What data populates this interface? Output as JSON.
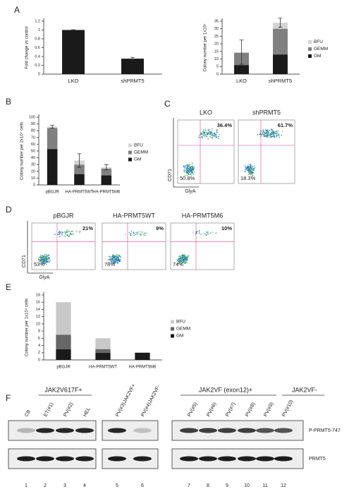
{
  "panels": [
    "A",
    "B",
    "C",
    "D",
    "E",
    "F"
  ],
  "chart_data": [
    {
      "type": "bar",
      "y_label": "Fold change vs control",
      "categories": [
        "LKO",
        "shPRMT5"
      ],
      "values": [
        1,
        0.35
      ],
      "errors": [
        0.005,
        0.03
      ],
      "color": "#1a1a1a",
      "ylim": [
        0,
        1.2
      ],
      "yticks": [
        0,
        0.2,
        0.4,
        0.6,
        0.8,
        1,
        1.2
      ]
    },
    {
      "type": "bar",
      "stacked": true,
      "legend": "right",
      "y_label": "Colony number per 1x10⁴",
      "categories": [
        "LKO",
        "shPRMT5"
      ],
      "series": [
        {
          "name": "GM",
          "color": "#1a1a1a",
          "values": [
            6,
            13
          ]
        },
        {
          "name": "GEMM",
          "color": "#808080",
          "values": [
            8,
            17
          ]
        },
        {
          "name": "BFU",
          "color": "#d4d4d4",
          "values": [
            0.5,
            4
          ],
          "errors": [
            8,
            3
          ]
        }
      ],
      "ylim": [
        0,
        35
      ],
      "yticks": [
        0,
        5,
        10,
        15,
        20,
        25,
        30,
        35
      ]
    },
    {
      "type": "bar",
      "stacked": true,
      "legend": "right",
      "y_label": "Colony number per 2x10⁴ cells",
      "categories": [
        "pBGJR",
        "HA-PRMT5WT",
        "HA-PRMT5M6"
      ],
      "series": [
        {
          "name": "GM",
          "color": "#1a1a1a",
          "values": [
            53,
            16,
            14
          ]
        },
        {
          "name": "GEMM",
          "color": "#808080",
          "values": [
            31,
            14,
            10
          ]
        },
        {
          "name": "BFU",
          "color": "#d4d4d4",
          "values": [
            2,
            6,
            2
          ],
          "errors": [
            2,
            10,
            4
          ]
        }
      ],
      "ylim": [
        0,
        100
      ],
      "yticks": [
        0,
        10,
        20,
        30,
        40,
        50,
        60,
        70,
        80,
        90,
        100
      ]
    },
    {
      "type": "bar",
      "stacked": true,
      "legend": "right",
      "y_label": "Colony number per 1x10⁴ cells",
      "categories": [
        "pBGJR",
        "HA-PRMT5WT",
        "HA-PRMT5M6"
      ],
      "series": [
        {
          "name": "GM",
          "color": "#1a1a1a",
          "values": [
            3,
            2,
            2
          ]
        },
        {
          "name": "GEMM",
          "color": "#666666",
          "values": [
            4,
            1,
            0
          ]
        },
        {
          "name": "BFU",
          "color": "#c8c8c8",
          "values": [
            9,
            3,
            0
          ]
        }
      ],
      "ylim": [
        0,
        18
      ],
      "yticks": [
        0,
        2,
        4,
        6,
        8,
        10,
        12,
        14,
        16,
        18
      ]
    }
  ],
  "flow": [
    {
      "x_label": "GlyA",
      "y_label": "CD71",
      "plots": [
        {
          "title": "LKO",
          "upper_right": "36.4%",
          "lower_left": "50.8%"
        },
        {
          "title": "shPRMT5",
          "upper_right": "61.7%",
          "lower_left": "18.3%"
        }
      ]
    },
    {
      "x_label": "GlyA",
      "y_label": "CD71",
      "plots": [
        {
          "title": "pBGJR",
          "upper_right": "21%",
          "lower_left": "53%"
        },
        {
          "title": "HA-PRMT5WT",
          "upper_right": "9%",
          "lower_left": "78%"
        },
        {
          "title": "HA-PRMT5M6",
          "upper_right": "10%",
          "lower_left": "74%"
        }
      ]
    }
  ],
  "blot": {
    "group_labels": [
      "JAK2V617F+",
      "JAK2VF (exon12)+",
      "JAK2VF-"
    ],
    "lanes": [
      "CB",
      "ET(#1)",
      "PV(#2)",
      "HEL",
      "PV(#3)JAK2VF+",
      "PV(#4)JAK2VF-",
      "PV(#5)",
      "PV(#6)",
      "PV(#7)",
      "PV(#8)",
      "PV(#9)",
      "PV(#10)"
    ],
    "lane_numbers": [
      "1",
      "2",
      "3",
      "4",
      "5",
      "6",
      "7",
      "8",
      "9",
      "10",
      "11",
      "12"
    ],
    "bands": [
      "P-PRMT5-747",
      "PRMT5"
    ]
  }
}
